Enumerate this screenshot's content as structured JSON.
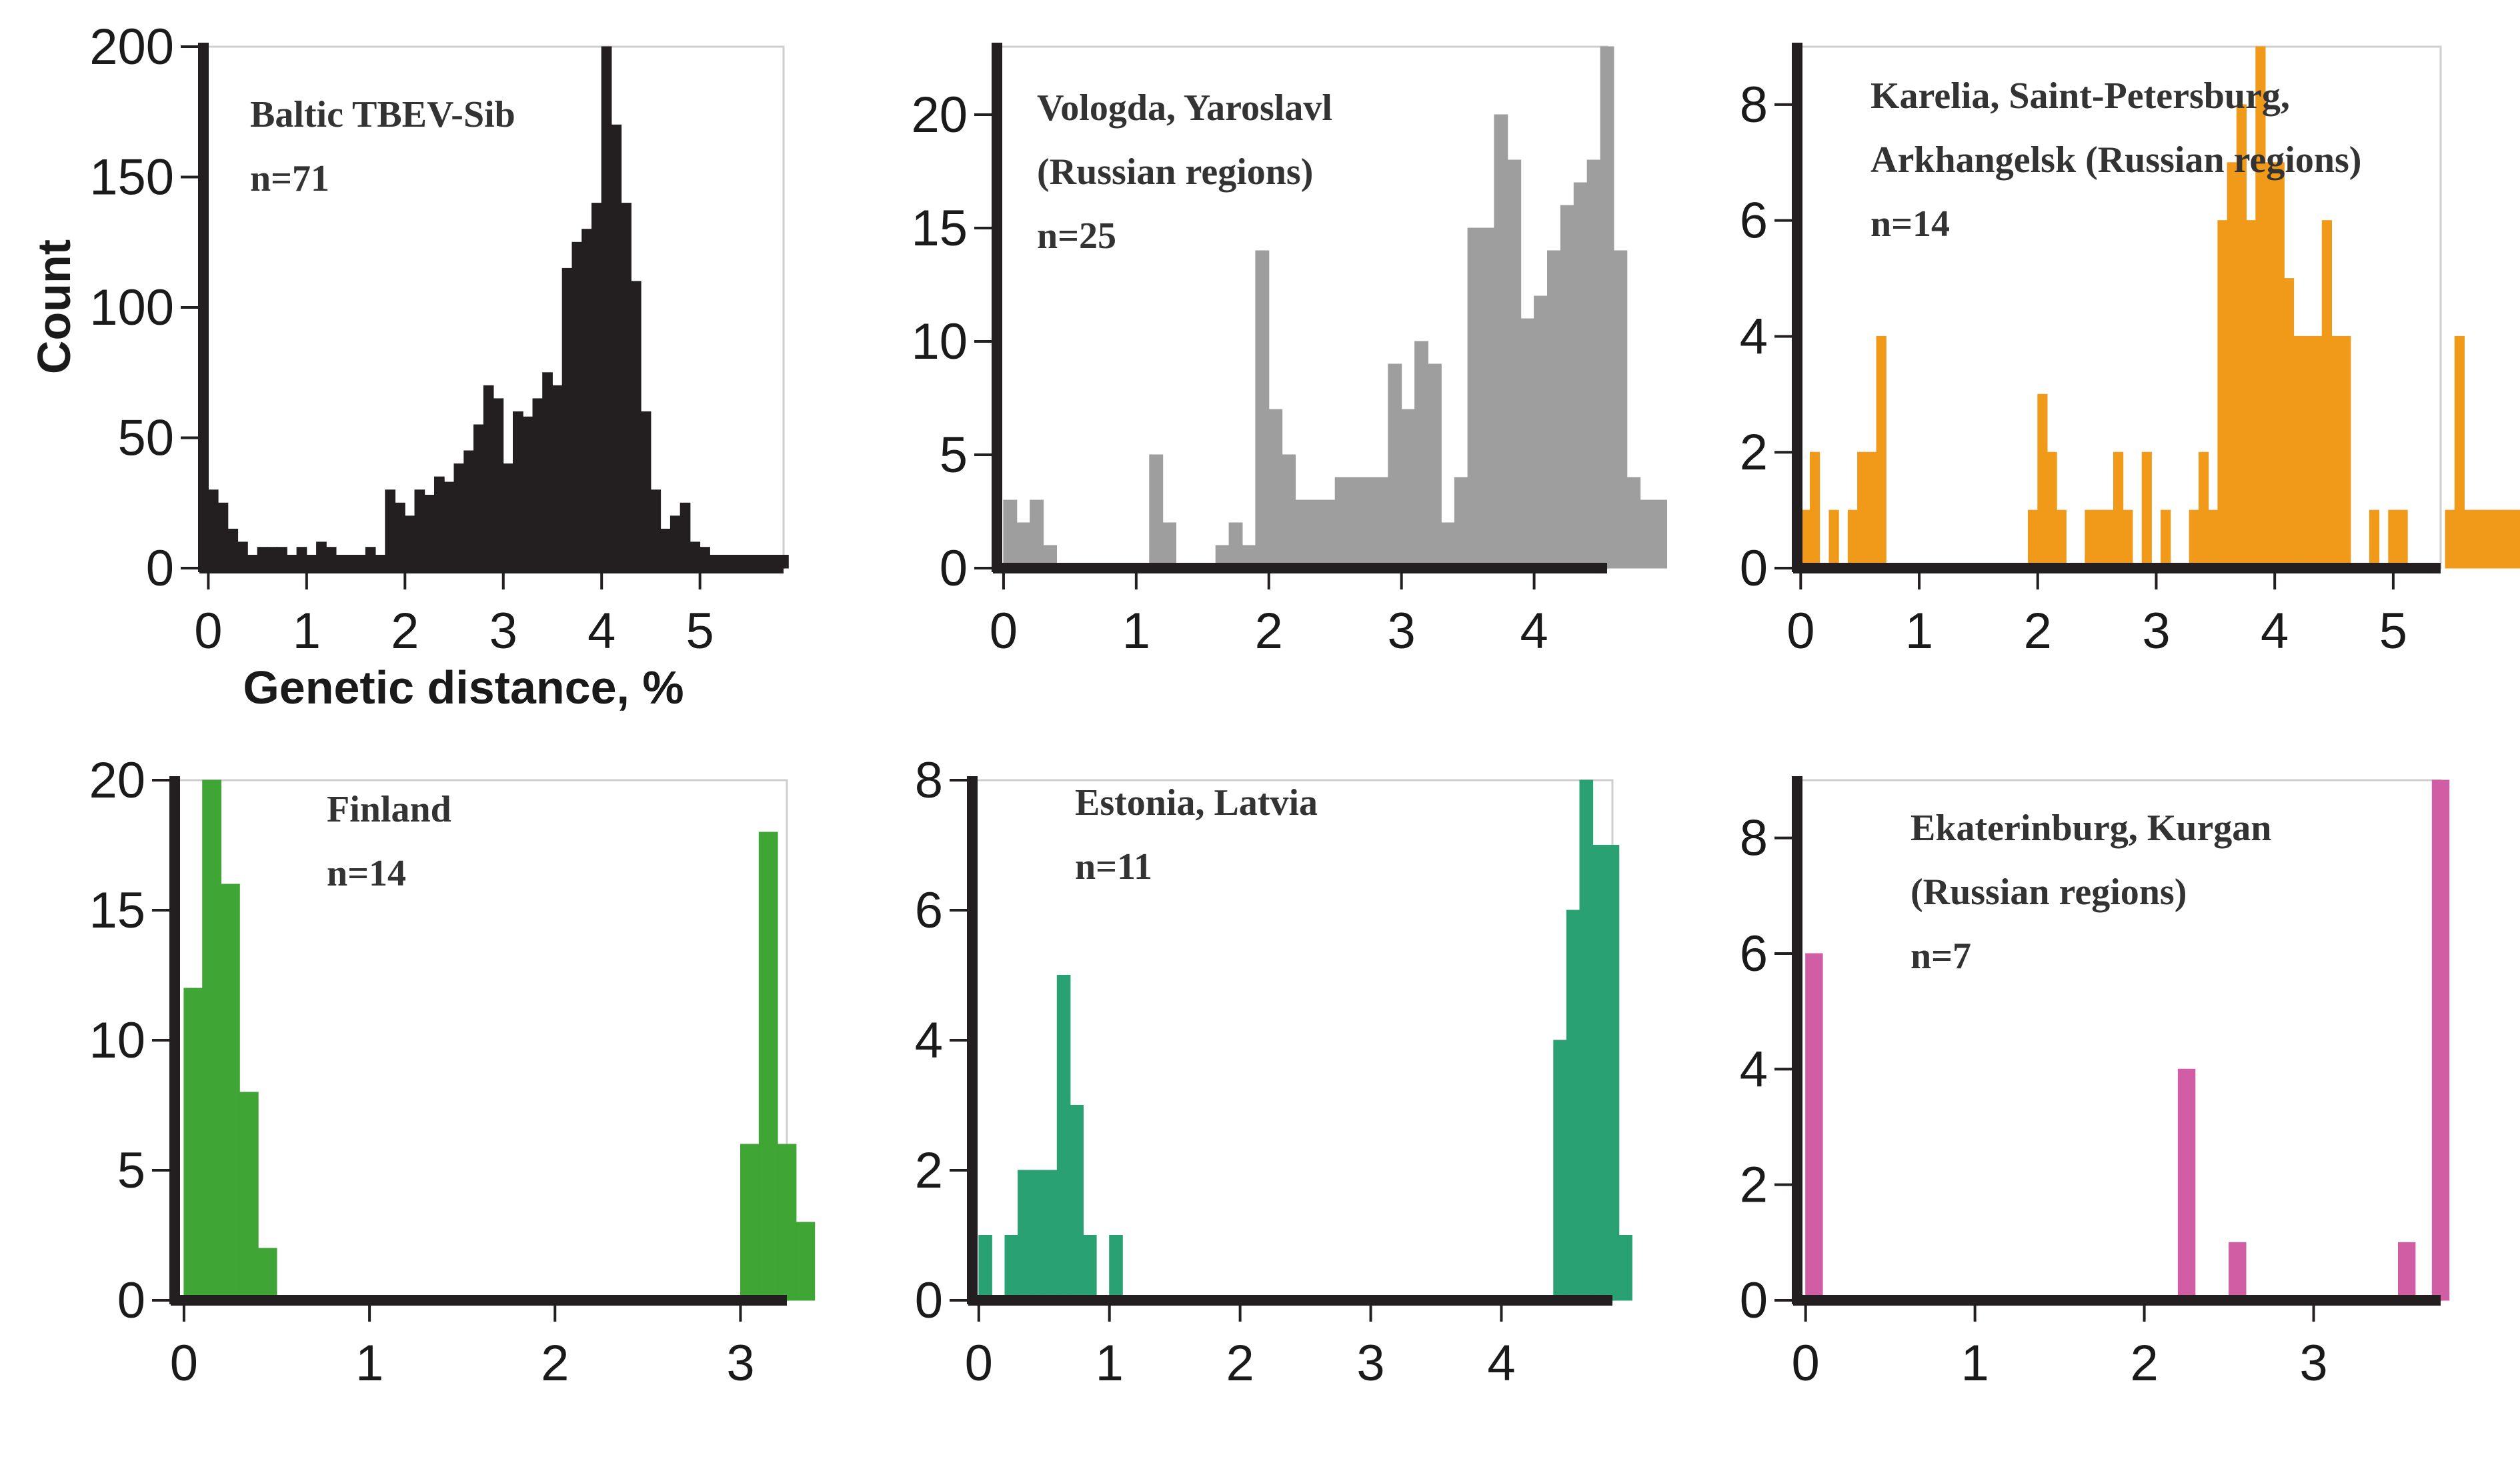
{
  "figure": {
    "ylabel": "Count",
    "xlabel": "Genetic distance, %"
  },
  "chart_data": [
    {
      "type": "bar",
      "title": "Baltic TBEV-Sib",
      "n_label": "n=71",
      "color": "#231f20",
      "xlabel": "Genetic distance, %",
      "ylabel": "Count",
      "xlim": [
        -0.05,
        5.85
      ],
      "ylim": [
        0,
        200
      ],
      "xticks": [
        0,
        1,
        2,
        3,
        4,
        5
      ],
      "yticks": [
        0,
        50,
        100,
        150,
        200
      ],
      "bin_start": 0,
      "bin_width": 0.1,
      "values": [
        30,
        25,
        15,
        10,
        5,
        8,
        8,
        8,
        5,
        8,
        5,
        10,
        8,
        5,
        5,
        5,
        8,
        5,
        30,
        25,
        20,
        30,
        28,
        35,
        33,
        40,
        45,
        55,
        70,
        65,
        40,
        60,
        58,
        65,
        75,
        70,
        115,
        125,
        130,
        140,
        200,
        170,
        140,
        110,
        60,
        30,
        15,
        20,
        25,
        10,
        8,
        5,
        5,
        5,
        5,
        5,
        5,
        5,
        5
      ]
    },
    {
      "type": "bar",
      "title": "Vologda, Yaroslavl",
      "subtitle": "(Russian regions)",
      "n_label": "n=25",
      "color": "#9e9e9e",
      "xlim": [
        -0.05,
        4.55
      ],
      "ylim": [
        0,
        23
      ],
      "xticks": [
        0,
        1,
        2,
        3,
        4
      ],
      "yticks": [
        0,
        5,
        10,
        15,
        20
      ],
      "bin_start": 0,
      "bin_width": 0.1,
      "values": [
        3,
        2,
        3,
        1,
        0,
        0,
        0,
        0,
        0,
        0,
        0,
        5,
        2,
        0,
        0,
        0,
        1,
        2,
        1,
        14,
        7,
        5,
        3,
        3,
        3,
        4,
        4,
        4,
        4,
        9,
        7,
        10,
        9,
        2,
        4,
        15,
        15,
        20,
        18,
        11,
        12,
        14,
        16,
        17,
        18,
        23,
        14,
        4,
        3,
        3
      ]
    },
    {
      "type": "bar",
      "title": "Karelia,  Saint-Petersburg,",
      "subtitle": "Arkhangelsk (Russian regions)",
      "n_label": "n=14",
      "color": "#f19a1a",
      "xlim": [
        -0.03,
        5.4
      ],
      "ylim": [
        0,
        9
      ],
      "xticks": [
        0,
        1,
        2,
        3,
        4,
        5
      ],
      "yticks": [
        0,
        2,
        4,
        6,
        8
      ],
      "bin_start": 0,
      "bin_width": 0.08,
      "values": [
        1,
        2,
        0,
        1,
        0,
        1,
        2,
        2,
        4,
        0,
        0,
        0,
        0,
        0,
        0,
        0,
        0,
        0,
        0,
        0,
        0,
        0,
        0,
        0,
        1,
        3,
        2,
        1,
        0,
        0,
        1,
        1,
        1,
        2,
        1,
        0,
        2,
        0,
        1,
        0,
        0,
        1,
        2,
        1,
        6,
        7,
        8,
        6,
        9,
        7,
        7,
        5,
        4,
        4,
        4,
        6,
        4,
        4,
        0,
        0,
        1,
        0,
        1,
        1,
        0,
        0,
        0,
        0,
        1,
        4,
        1,
        1,
        1,
        1,
        1,
        1,
        1,
        1
      ]
    },
    {
      "type": "bar",
      "title": "Finland",
      "n_label": "n=14",
      "color": "#3fa535",
      "xlim": [
        -0.05,
        3.25
      ],
      "ylim": [
        0,
        20
      ],
      "xticks": [
        0,
        1,
        2,
        3
      ],
      "yticks": [
        0,
        5,
        10,
        15,
        20
      ],
      "bin_start": 0,
      "bin_width": 0.1,
      "values": [
        12,
        20,
        16,
        8,
        2,
        0,
        0,
        0,
        0,
        0,
        0,
        0,
        0,
        0,
        0,
        0,
        0,
        0,
        0,
        0,
        0,
        0,
        0,
        0,
        0,
        0,
        0,
        0,
        0,
        0,
        6,
        18,
        6,
        3
      ]
    },
    {
      "type": "bar",
      "title": "Estonia, Latvia",
      "n_label": "n=11",
      "color": "#2aa173",
      "xlim": [
        -0.05,
        4.85
      ],
      "ylim": [
        0,
        8
      ],
      "xticks": [
        0,
        1,
        2,
        3,
        4
      ],
      "yticks": [
        0,
        2,
        4,
        6,
        8
      ],
      "bin_start": 0,
      "bin_width": 0.1,
      "values": [
        1,
        0,
        1,
        2,
        2,
        2,
        5,
        3,
        1,
        0,
        1,
        0,
        0,
        0,
        0,
        0,
        0,
        0,
        0,
        0,
        0,
        0,
        0,
        0,
        0,
        0,
        0,
        0,
        0,
        0,
        0,
        0,
        0,
        0,
        0,
        0,
        0,
        0,
        0,
        0,
        0,
        0,
        0,
        0,
        4,
        6,
        8,
        7,
        7,
        1
      ]
    },
    {
      "type": "bar",
      "title": "Ekaterinburg, Kurgan",
      "subtitle": " (Russian regions)",
      "n_label": "n=7",
      "color": "#d15ea4",
      "xlim": [
        -0.05,
        3.75
      ],
      "ylim": [
        0,
        9
      ],
      "xticks": [
        0,
        1,
        2,
        3
      ],
      "yticks": [
        0,
        2,
        4,
        6,
        8
      ],
      "bin_start": 0,
      "bin_width": 0.1,
      "values": [
        6,
        0,
        0,
        0,
        0,
        0,
        0,
        0,
        0,
        0,
        0,
        0,
        0,
        0,
        0,
        0,
        0,
        0,
        0,
        0,
        0,
        0,
        4,
        0,
        0,
        1,
        0,
        0,
        0,
        0,
        0,
        0,
        0,
        0,
        0,
        1,
        0,
        9
      ]
    }
  ]
}
